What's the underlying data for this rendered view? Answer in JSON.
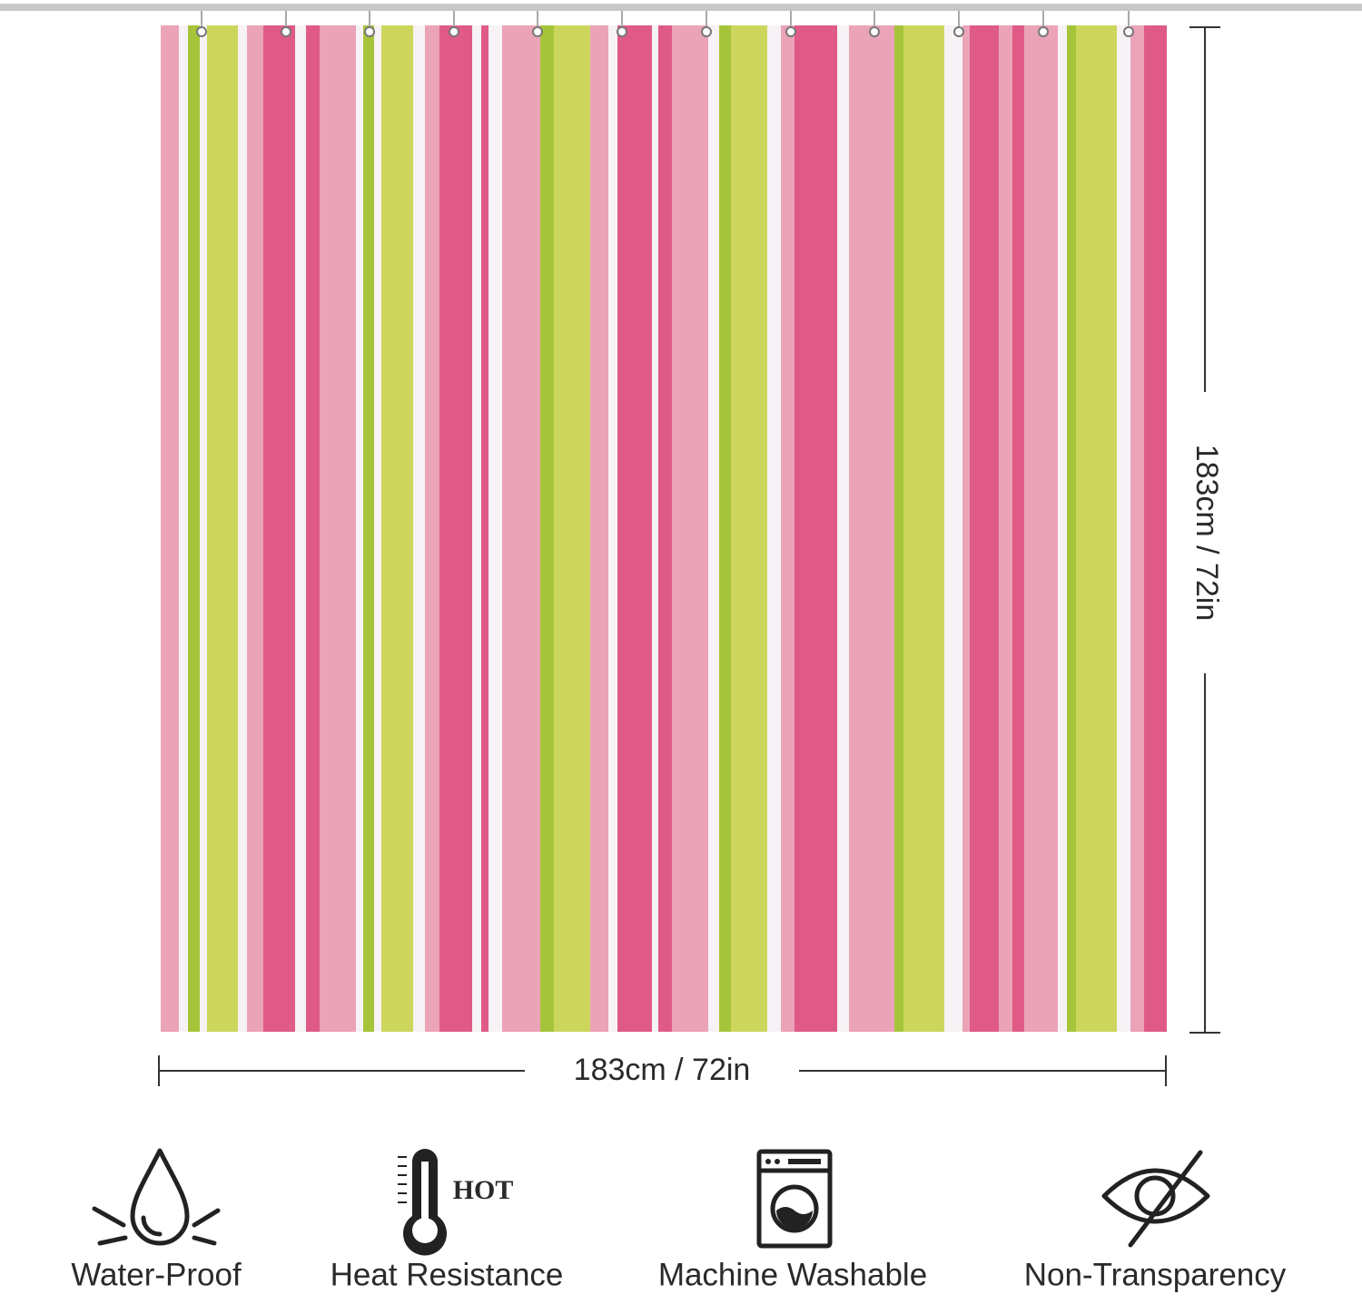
{
  "dimensions": {
    "width": "183cm / 72in",
    "height": "183cm / 72in"
  },
  "features": [
    {
      "label": "Water-Proof"
    },
    {
      "label": "Heat Resistance",
      "icon_text": "HOT"
    },
    {
      "label": "Machine Washable"
    },
    {
      "label": "Non-Transparency"
    }
  ]
}
